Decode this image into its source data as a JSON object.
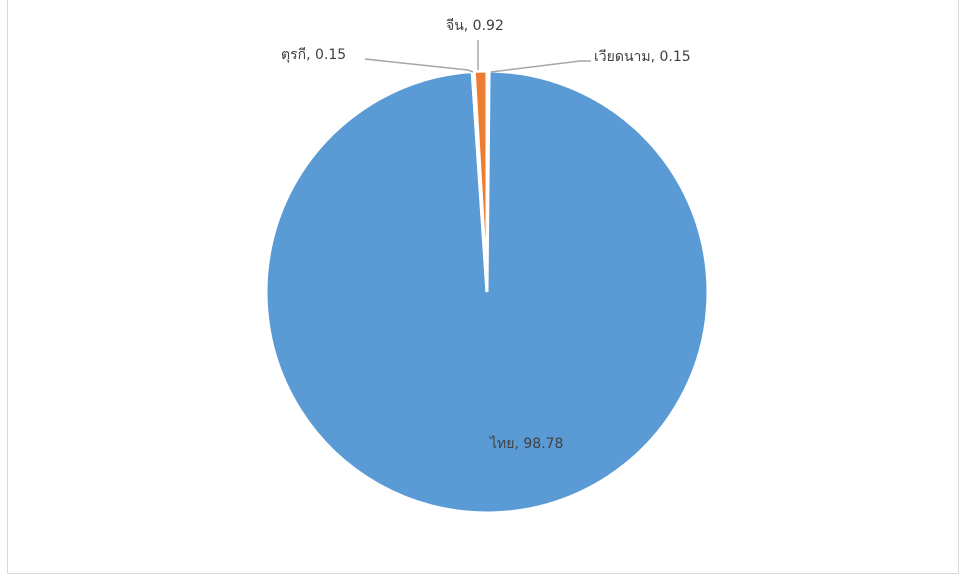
{
  "chart_data": {
    "type": "pie",
    "title": "",
    "slices": [
      {
        "label": "ไทย",
        "value": 98.78,
        "display": "ไทย, 98.78",
        "color": "#5b9bd5"
      },
      {
        "label": "ตุรกี",
        "value": 0.15,
        "display": "ตุรกี, 0.15",
        "color": "#a5a5a5"
      },
      {
        "label": "จีน",
        "value": 0.92,
        "display": "จีน, 0.92",
        "color": "#ed7d31"
      },
      {
        "label": "เวียดนาม",
        "value": 0.15,
        "display": "เวียดนาม, 0.15",
        "color": "#ffc000"
      }
    ],
    "legend": "none"
  }
}
